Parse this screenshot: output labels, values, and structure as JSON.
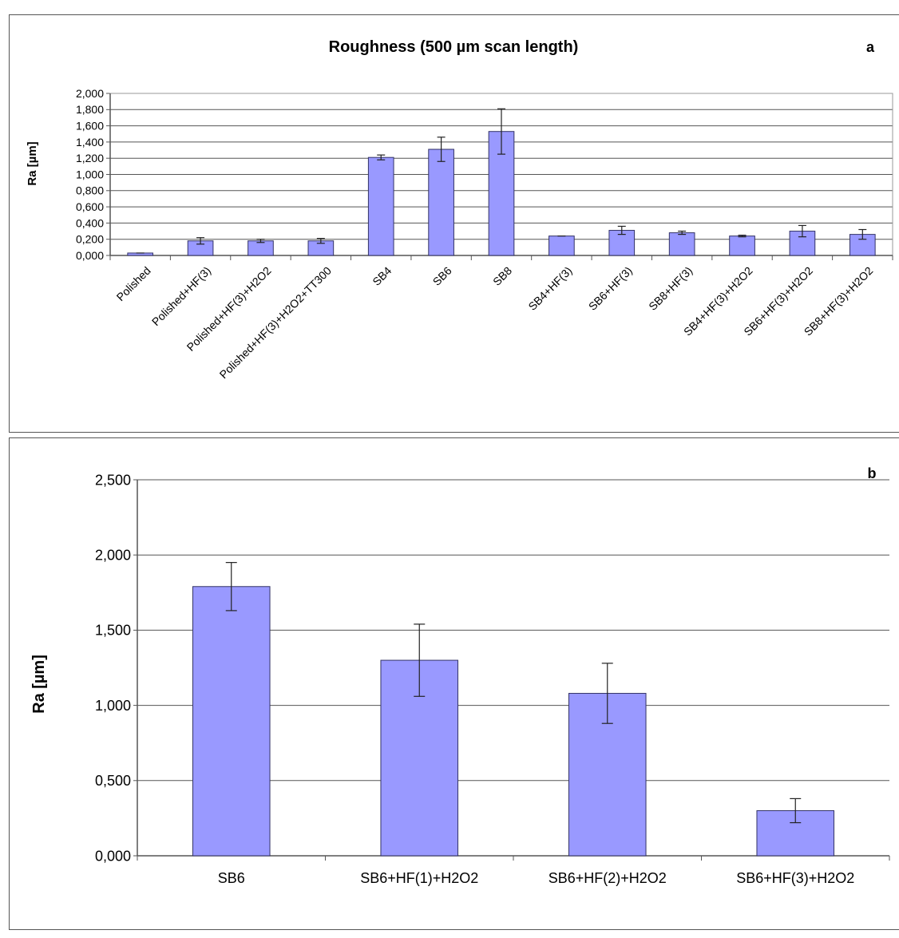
{
  "chart_data": [
    {
      "type": "bar",
      "title": "Roughness (500 µm scan length)",
      "panel_letter": "a",
      "xlabel": "",
      "ylabel": "Ra [µm]",
      "ylim": [
        0,
        2.0
      ],
      "y_ticks": [
        "0,000",
        "0,200",
        "0,400",
        "0,600",
        "0,800",
        "1,000",
        "1,200",
        "1,400",
        "1,600",
        "1,800",
        "2,000"
      ],
      "grid": true,
      "categories": [
        "Polished",
        "Polished+HF(3)",
        "Polished+HF(3)+H2O2",
        "Polished+HF(3)+H2O2+TT300",
        "SB4",
        "SB6",
        "SB8",
        "SB4+HF(3)",
        "SB6+HF(3)",
        "SB8+HF(3)",
        "SB4+HF(3)+H2O2",
        "SB6+HF(3)+H2O2",
        "SB8+HF(3)+H2O2"
      ],
      "values": [
        0.03,
        0.18,
        0.18,
        0.18,
        1.21,
        1.31,
        1.53,
        0.24,
        0.31,
        0.28,
        0.24,
        0.3,
        0.26
      ],
      "errors": [
        0.0,
        0.04,
        0.02,
        0.03,
        0.03,
        0.15,
        0.28,
        0.0,
        0.05,
        0.02,
        0.01,
        0.07,
        0.06
      ],
      "colors": {
        "bar": "#9999ff",
        "bar_stroke": "#333366"
      }
    },
    {
      "type": "bar",
      "title": "",
      "panel_letter": "b",
      "xlabel": "",
      "ylabel": "Ra [µm]",
      "ylim": [
        0,
        2.5
      ],
      "y_ticks": [
        "0,000",
        "0,500",
        "1,000",
        "1,500",
        "2,000",
        "2,500"
      ],
      "grid": true,
      "categories": [
        "SB6",
        "SB6+HF(1)+H2O2",
        "SB6+HF(2)+H2O2",
        "SB6+HF(3)+H2O2"
      ],
      "values": [
        1.79,
        1.3,
        1.08,
        0.3
      ],
      "errors": [
        0.16,
        0.24,
        0.2,
        0.08
      ],
      "colors": {
        "bar": "#9999ff",
        "bar_stroke": "#333366"
      }
    }
  ]
}
